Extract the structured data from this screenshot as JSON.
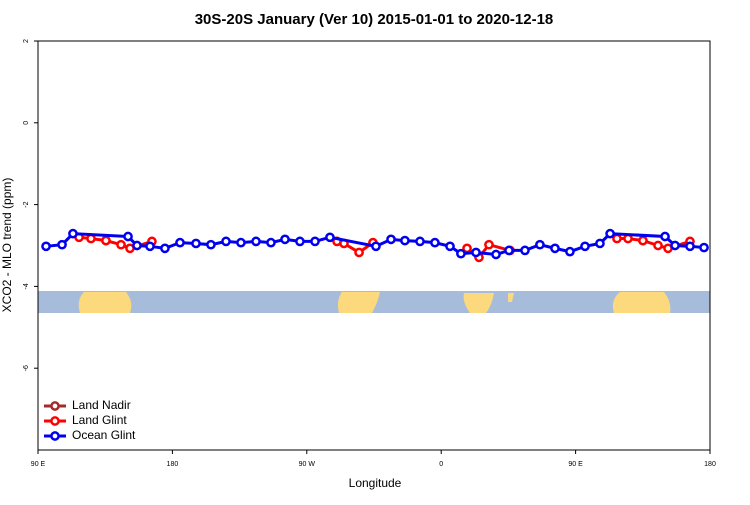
{
  "chart_data": {
    "type": "line",
    "title": "30S-20S January (Ver 10)   2015-01-01 to 2020-12-18",
    "x_label": "Longitude",
    "y_label": "XCO2 - MLO trend (ppm)",
    "xlim": [
      90,
      540
    ],
    "xticks": [
      {
        "value": 90,
        "label": "90 E"
      },
      180,
      {
        "value": 270,
        "label": "90 W"
      },
      {
        "value": 360,
        "label": "0"
      },
      {
        "value": 450,
        "label": "90 E"
      },
      {
        "value": 540,
        "label": "180"
      }
    ],
    "ylim": [
      -8,
      2
    ],
    "yticks": [
      2,
      0,
      -2,
      -4,
      -6
    ],
    "legend": "bottom-left",
    "series": [
      {
        "name": "Land Nadir",
        "color": "#a52a2a",
        "x": [
          135.5,
          null,
          495.1
        ],
        "values": [
          -2.88,
          null,
          -2.88
        ]
      },
      {
        "name": "Land Glint",
        "color": "#ff0000",
        "x": [
          117.5,
          125.5,
          135.5,
          145.6,
          151.6,
          166.3,
          null,
          290.2,
          294.9,
          305,
          314.3,
          null,
          377.3,
          385.3,
          392,
          406.1,
          null,
          477.7,
          485.1,
          495.1,
          505.2,
          511.9,
          526.6
        ],
        "values": [
          -2.8,
          -2.83,
          -2.88,
          -2.98,
          -3.07,
          -2.9,
          null,
          -2.9,
          -2.95,
          -3.17,
          -2.93,
          null,
          -3.07,
          -3.29,
          -2.98,
          -3.12,
          null,
          -2.83,
          -2.83,
          -2.88,
          -3.0,
          -3.07,
          -2.9
        ]
      },
      {
        "name": "Ocean Glint",
        "color": "#0000ee",
        "x": [
          95.4,
          106.1,
          113.4,
          150.3,
          156.3,
          165,
          175,
          185.1,
          195.8,
          205.8,
          215.9,
          225.9,
          236,
          246,
          255.4,
          265.4,
          275.5,
          285.5,
          316.3,
          326.4,
          335.7,
          345.8,
          355.8,
          365.9,
          373.2,
          383.3,
          396.7,
          405.4,
          416.1,
          426.1,
          436.2,
          446.2,
          456.3,
          466.3,
          473.1,
          509.9,
          516.6,
          526.6,
          536
        ],
        "values": [
          -3.02,
          -2.98,
          -2.71,
          -2.78,
          -3.0,
          -3.02,
          -3.07,
          -2.93,
          -2.95,
          -2.98,
          -2.9,
          -2.93,
          -2.9,
          -2.93,
          -2.85,
          -2.9,
          -2.9,
          -2.8,
          -3.02,
          -2.85,
          -2.88,
          -2.9,
          -2.93,
          -3.02,
          -3.2,
          -3.17,
          -3.22,
          -3.12,
          -3.12,
          -2.98,
          -3.07,
          -3.15,
          -3.02,
          -2.95,
          -2.71,
          -2.78,
          -3.0,
          -3.02,
          -3.05
        ]
      }
    ]
  }
}
